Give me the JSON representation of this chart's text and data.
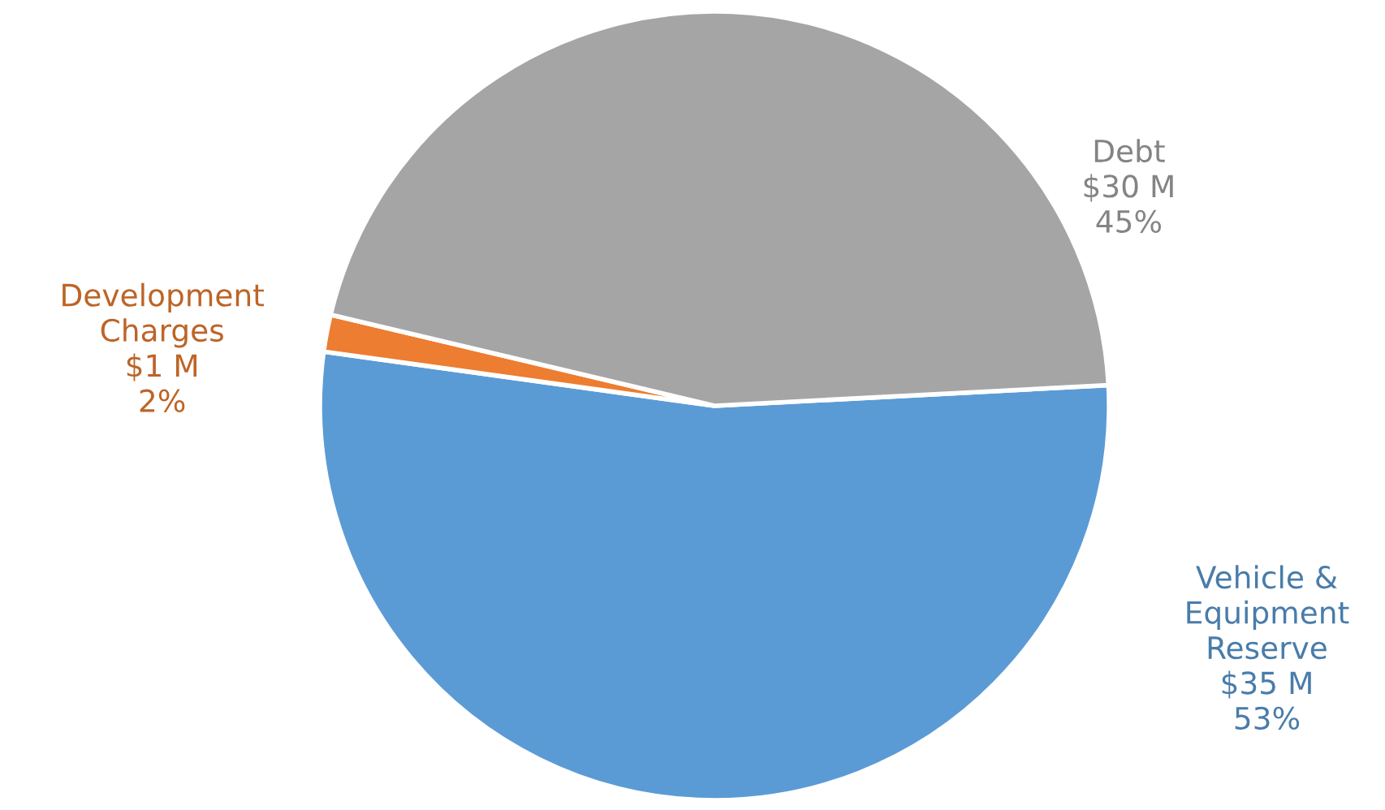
{
  "chart_data": {
    "type": "pie",
    "categories": [
      "Vehicle &\nEquipment\nReserve",
      "Development\nCharges",
      "Debt"
    ],
    "values": [
      35,
      1,
      30
    ],
    "value_labels": [
      "$35 M\n53%",
      "$1 M\n2%",
      "$30 M\n45%"
    ],
    "colors": [
      "#5b9bd5",
      "#ed7d31",
      "#a5a5a5"
    ],
    "legend": false
  }
}
